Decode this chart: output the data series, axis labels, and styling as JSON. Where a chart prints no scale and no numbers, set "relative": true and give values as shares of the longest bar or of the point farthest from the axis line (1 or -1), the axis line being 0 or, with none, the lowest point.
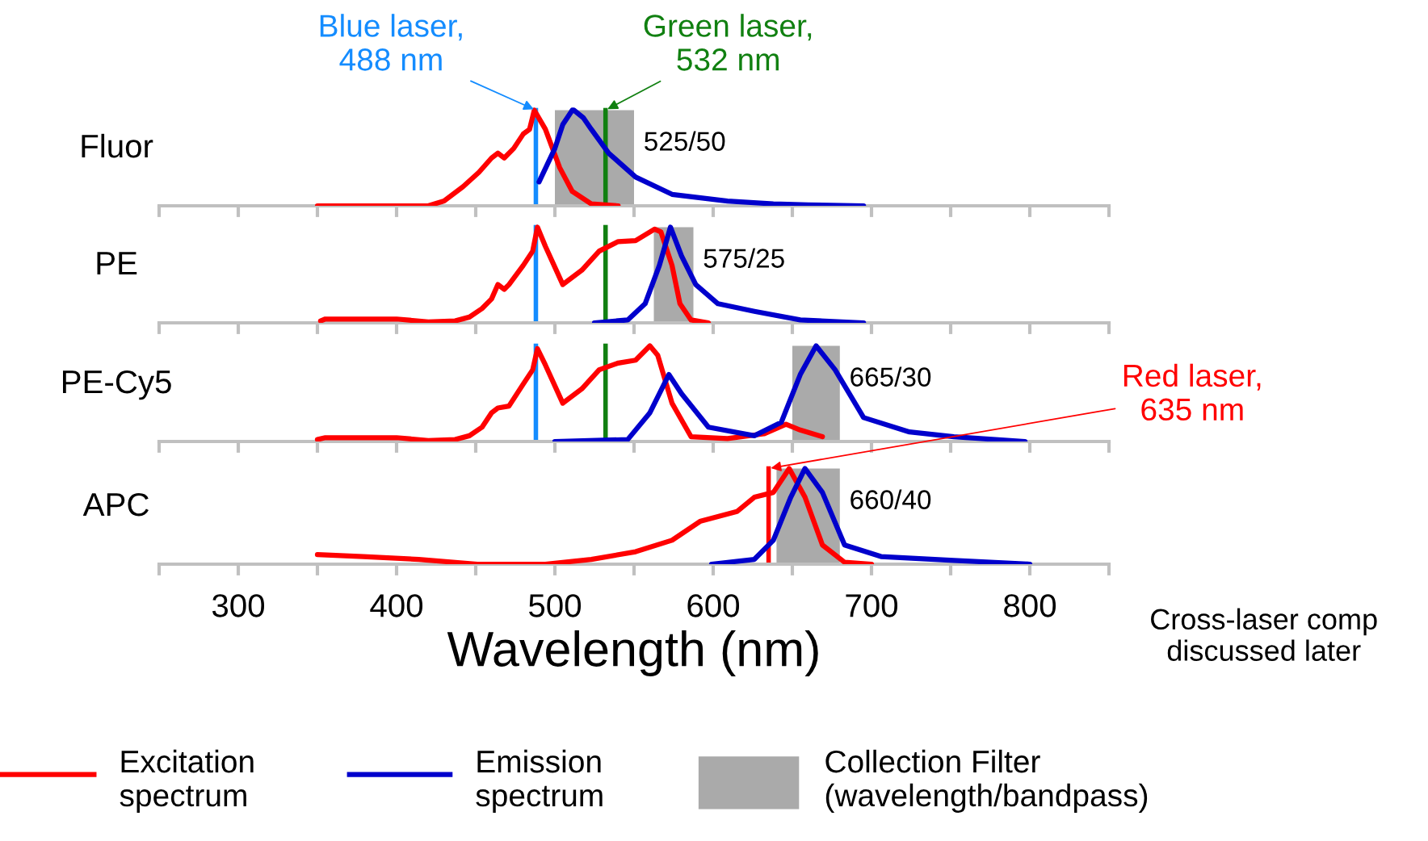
{
  "chart_data": [
    {
      "type": "line",
      "title": "Fluor",
      "relative": true,
      "xlim": [
        250,
        850
      ],
      "xticks": [
        {
          "value": 250,
          "label": null
        },
        {
          "value": 300,
          "label": null
        },
        {
          "value": 350,
          "label": null
        },
        {
          "value": 400,
          "label": null
        },
        {
          "value": 450,
          "label": null
        },
        {
          "value": 500,
          "label": null
        },
        {
          "value": 550,
          "label": null
        },
        {
          "value": 600,
          "label": null
        },
        {
          "value": 650,
          "label": null
        },
        {
          "value": 700,
          "label": null
        },
        {
          "value": 750,
          "label": null
        },
        {
          "value": 800,
          "label": null
        },
        {
          "value": 850,
          "label": null
        }
      ],
      "tick_labels": false,
      "series": [
        {
          "color": "#ff0000",
          "x": [
            350,
            420,
            430,
            442,
            452,
            460,
            464,
            468,
            474,
            480,
            484,
            487,
            494,
            503,
            511,
            523,
            540
          ],
          "values": [
            0,
            0,
            0.05,
            0.2,
            0.35,
            0.5,
            0.55,
            0.5,
            0.6,
            0.75,
            0.8,
            1.0,
            0.8,
            0.4,
            0.15,
            0.02,
            0
          ]
        },
        {
          "color": "#0000cc",
          "x": [
            490,
            500,
            505,
            511,
            512,
            518,
            523,
            534,
            551,
            574,
            609,
            638,
            660,
            695
          ],
          "values": [
            0.25,
            0.6,
            0.85,
            1.0,
            1.0,
            0.92,
            0.8,
            0.55,
            0.3,
            0.12,
            0.05,
            0.02,
            0.01,
            0
          ]
        }
      ],
      "bands": [
        {
          "axis": "x",
          "from": 500,
          "to": 550,
          "label": "525/50",
          "color": "#aaaaaa"
        }
      ],
      "ref_lines": [
        {
          "axis": "x",
          "value": 488,
          "label": "Blue laser,\n488 nm",
          "color": "#148cff"
        },
        {
          "axis": "x",
          "value": 532,
          "label": "Green laser,\n532 nm",
          "color": "#118011"
        }
      ]
    },
    {
      "type": "line",
      "title": "PE",
      "relative": true,
      "xlim": [
        250,
        850
      ],
      "xticks": [
        {
          "value": 250,
          "label": null
        },
        {
          "value": 300,
          "label": null
        },
        {
          "value": 350,
          "label": null
        },
        {
          "value": 400,
          "label": null
        },
        {
          "value": 450,
          "label": null
        },
        {
          "value": 500,
          "label": null
        },
        {
          "value": 550,
          "label": null
        },
        {
          "value": 600,
          "label": null
        },
        {
          "value": 650,
          "label": null
        },
        {
          "value": 700,
          "label": null
        },
        {
          "value": 750,
          "label": null
        },
        {
          "value": 800,
          "label": null
        },
        {
          "value": 850,
          "label": null
        }
      ],
      "tick_labels": false,
      "series": [
        {
          "color": "#ff0000",
          "x": [
            352,
            355,
            400,
            420,
            437,
            446,
            454,
            460,
            464,
            468,
            471,
            480,
            486,
            489,
            494,
            505,
            517,
            528,
            540,
            551,
            563,
            567,
            574,
            579,
            586,
            597
          ],
          "values": [
            0.02,
            0.04,
            0.04,
            0.01,
            0.02,
            0.06,
            0.15,
            0.25,
            0.4,
            0.35,
            0.4,
            0.6,
            0.75,
            1.0,
            0.8,
            0.4,
            0.55,
            0.75,
            0.85,
            0.86,
            0.98,
            0.95,
            0.6,
            0.2,
            0.03,
            0
          ]
        },
        {
          "color": "#0000cc",
          "x": [
            525,
            546,
            557,
            566,
            573,
            580,
            589,
            603,
            626,
            655,
            695
          ],
          "values": [
            0,
            0.03,
            0.2,
            0.6,
            1.0,
            0.7,
            0.4,
            0.2,
            0.12,
            0.03,
            0
          ]
        }
      ],
      "bands": [
        {
          "axis": "x",
          "from": 562.5,
          "to": 587.5,
          "label": "575/25",
          "color": "#aaaaaa"
        }
      ],
      "ref_lines": [
        {
          "axis": "x",
          "value": 488,
          "label": null,
          "color": "#148cff"
        },
        {
          "axis": "x",
          "value": 532,
          "label": null,
          "color": "#118011"
        }
      ]
    },
    {
      "type": "line",
      "title": "PE-Cy5",
      "relative": true,
      "xlim": [
        250,
        850
      ],
      "xticks": [
        {
          "value": 250,
          "label": null
        },
        {
          "value": 300,
          "label": null
        },
        {
          "value": 350,
          "label": null
        },
        {
          "value": 400,
          "label": null
        },
        {
          "value": 450,
          "label": null
        },
        {
          "value": 500,
          "label": null
        },
        {
          "value": 550,
          "label": null
        },
        {
          "value": 600,
          "label": null
        },
        {
          "value": 650,
          "label": null
        },
        {
          "value": 700,
          "label": null
        },
        {
          "value": 750,
          "label": null
        },
        {
          "value": 800,
          "label": null
        },
        {
          "value": 850,
          "label": null
        }
      ],
      "tick_labels": false,
      "series": [
        {
          "color": "#ff0000",
          "x": [
            350,
            355,
            400,
            420,
            437,
            446,
            454,
            460,
            464,
            471,
            480,
            486,
            489,
            494,
            505,
            517,
            528,
            540,
            551,
            560,
            565,
            574,
            586,
            609,
            632,
            646,
            655,
            669
          ],
          "values": [
            0.02,
            0.04,
            0.04,
            0.01,
            0.02,
            0.06,
            0.15,
            0.3,
            0.35,
            0.37,
            0.6,
            0.75,
            0.97,
            0.8,
            0.4,
            0.55,
            0.75,
            0.82,
            0.85,
            1.0,
            0.9,
            0.4,
            0.05,
            0.03,
            0.08,
            0.18,
            0.12,
            0.05
          ]
        },
        {
          "color": "#0000cc",
          "x": [
            500,
            546,
            560,
            572,
            580,
            597,
            626,
            643,
            655,
            665,
            677,
            695,
            724,
            752,
            797
          ],
          "values": [
            0,
            0.02,
            0.3,
            0.7,
            0.5,
            0.15,
            0.06,
            0.2,
            0.7,
            1.0,
            0.75,
            0.25,
            0.1,
            0.05,
            0
          ]
        }
      ],
      "bands": [
        {
          "axis": "x",
          "from": 650,
          "to": 680,
          "label": "665/30",
          "color": "#aaaaaa"
        }
      ],
      "ref_lines": [
        {
          "axis": "x",
          "value": 488,
          "label": null,
          "color": "#148cff"
        },
        {
          "axis": "x",
          "value": 532,
          "label": null,
          "color": "#118011"
        }
      ]
    },
    {
      "type": "line",
      "title": "APC",
      "relative": true,
      "xlabel": "Wavelength (nm)",
      "xlim": [
        250,
        850
      ],
      "xticks": [
        {
          "value": 250,
          "label": null
        },
        300,
        {
          "value": 350,
          "label": null
        },
        400,
        {
          "value": 450,
          "label": null
        },
        500,
        {
          "value": 550,
          "label": null
        },
        600,
        {
          "value": 650,
          "label": null
        },
        700,
        {
          "value": 750,
          "label": null
        },
        800,
        {
          "value": 850,
          "label": null
        }
      ],
      "tick_labels": "x",
      "legend": "bottom",
      "series": [
        {
          "name": "Excitation\nspectrum",
          "color": "#ff0000",
          "x": [
            350,
            379,
            414,
            451,
            494,
            523,
            551,
            574,
            592,
            615,
            626,
            638,
            648,
            658,
            669,
            683,
            700
          ],
          "values": [
            0.1,
            0.08,
            0.05,
            0,
            0,
            0.05,
            0.13,
            0.25,
            0.45,
            0.55,
            0.7,
            0.75,
            1.0,
            0.7,
            0.2,
            0.02,
            0
          ]
        },
        {
          "name": "Emission\nspectrum",
          "color": "#0000cc",
          "x": [
            599,
            626,
            638,
            649,
            658,
            669,
            683,
            706,
            752,
            800
          ],
          "values": [
            0,
            0.05,
            0.25,
            0.7,
            1.0,
            0.75,
            0.2,
            0.08,
            0.04,
            0
          ]
        }
      ],
      "bands": [
        {
          "axis": "x",
          "from": 640,
          "to": 680,
          "label": "660/40",
          "color": "#aaaaaa"
        }
      ],
      "ref_lines": [
        {
          "axis": "x",
          "value": 635,
          "label": "Red laser,\n635 nm",
          "color": "#ff0000"
        }
      ],
      "annotations": [
        "Cross-laser comp\ndiscussed later",
        "Collection Filter\n(wavelength/bandpass)"
      ]
    }
  ]
}
